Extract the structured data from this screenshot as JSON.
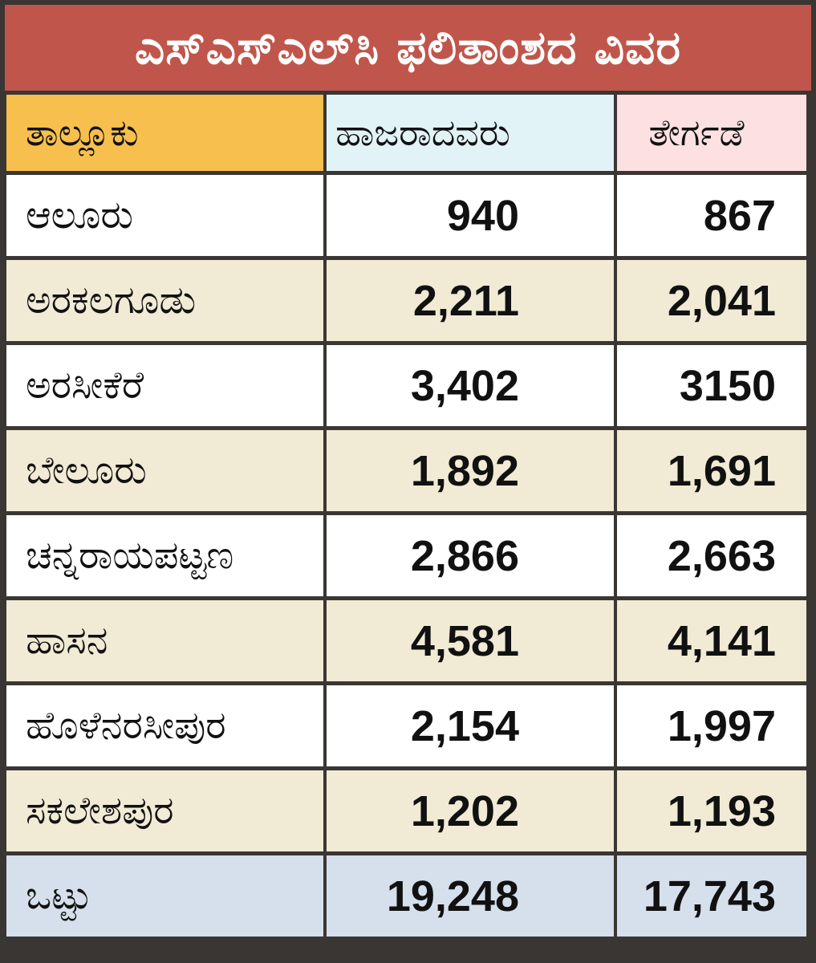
{
  "title": "ಎಸ್‌ಎಸ್‌ಎಲ್‌ಸಿ ಫಲಿತಾಂಶದ ವಿವರ",
  "colors": {
    "title_bg": "#c0564b",
    "header_taluk": "#f7bf4e",
    "header_appeared": "#e2f3f7",
    "header_passed": "#fde0e2",
    "row_alt": "#f1ead5",
    "total_row": "#d5e0ec"
  },
  "headers": {
    "taluk": "ತಾಲ್ಲೂಕು",
    "appeared": "ಹಾಜರಾದವರು",
    "passed": "ತೇರ್ಗಡೆ"
  },
  "rows": [
    {
      "taluk": "ಆಲೂರು",
      "appeared": "940",
      "passed": "867"
    },
    {
      "taluk": "ಅರಕಲಗೂಡು",
      "appeared": "2,211",
      "passed": "2,041"
    },
    {
      "taluk": "ಅರಸೀಕೆರೆ",
      "appeared": "3,402",
      "passed": "3150"
    },
    {
      "taluk": "ಬೇಲೂರು",
      "appeared": "1,892",
      "passed": "1,691"
    },
    {
      "taluk": "ಚನ್ನರಾಯಪಟ್ಟಣ",
      "appeared": "2,866",
      "passed": "2,663"
    },
    {
      "taluk": "ಹಾಸನ",
      "appeared": "4,581",
      "passed": "4,141"
    },
    {
      "taluk": "ಹೊಳೆನರಸೀಪುರ",
      "appeared": "2,154",
      "passed": "1,997"
    },
    {
      "taluk": "ಸಕಲೇಶಪುರ",
      "appeared": "1,202",
      "passed": "1,193"
    }
  ],
  "total": {
    "label": "ಒಟ್ಟು",
    "appeared": "19,248",
    "passed": "17,743"
  }
}
